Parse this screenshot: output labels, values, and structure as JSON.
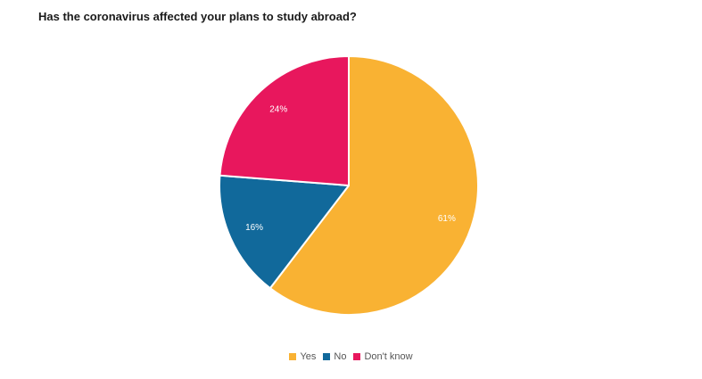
{
  "chart_data": {
    "type": "pie",
    "title": "Has the coronavirus affected your plans to study abroad?",
    "slices": [
      {
        "label": "Yes",
        "value": 61,
        "display": "61%",
        "color": "#F9B233"
      },
      {
        "label": "No",
        "value": 16,
        "display": "16%",
        "color": "#11699B"
      },
      {
        "label": "Don't know",
        "value": 24,
        "display": "24%",
        "color": "#E8175D"
      }
    ],
    "legend_placement": "bottom-center",
    "grid": false
  }
}
